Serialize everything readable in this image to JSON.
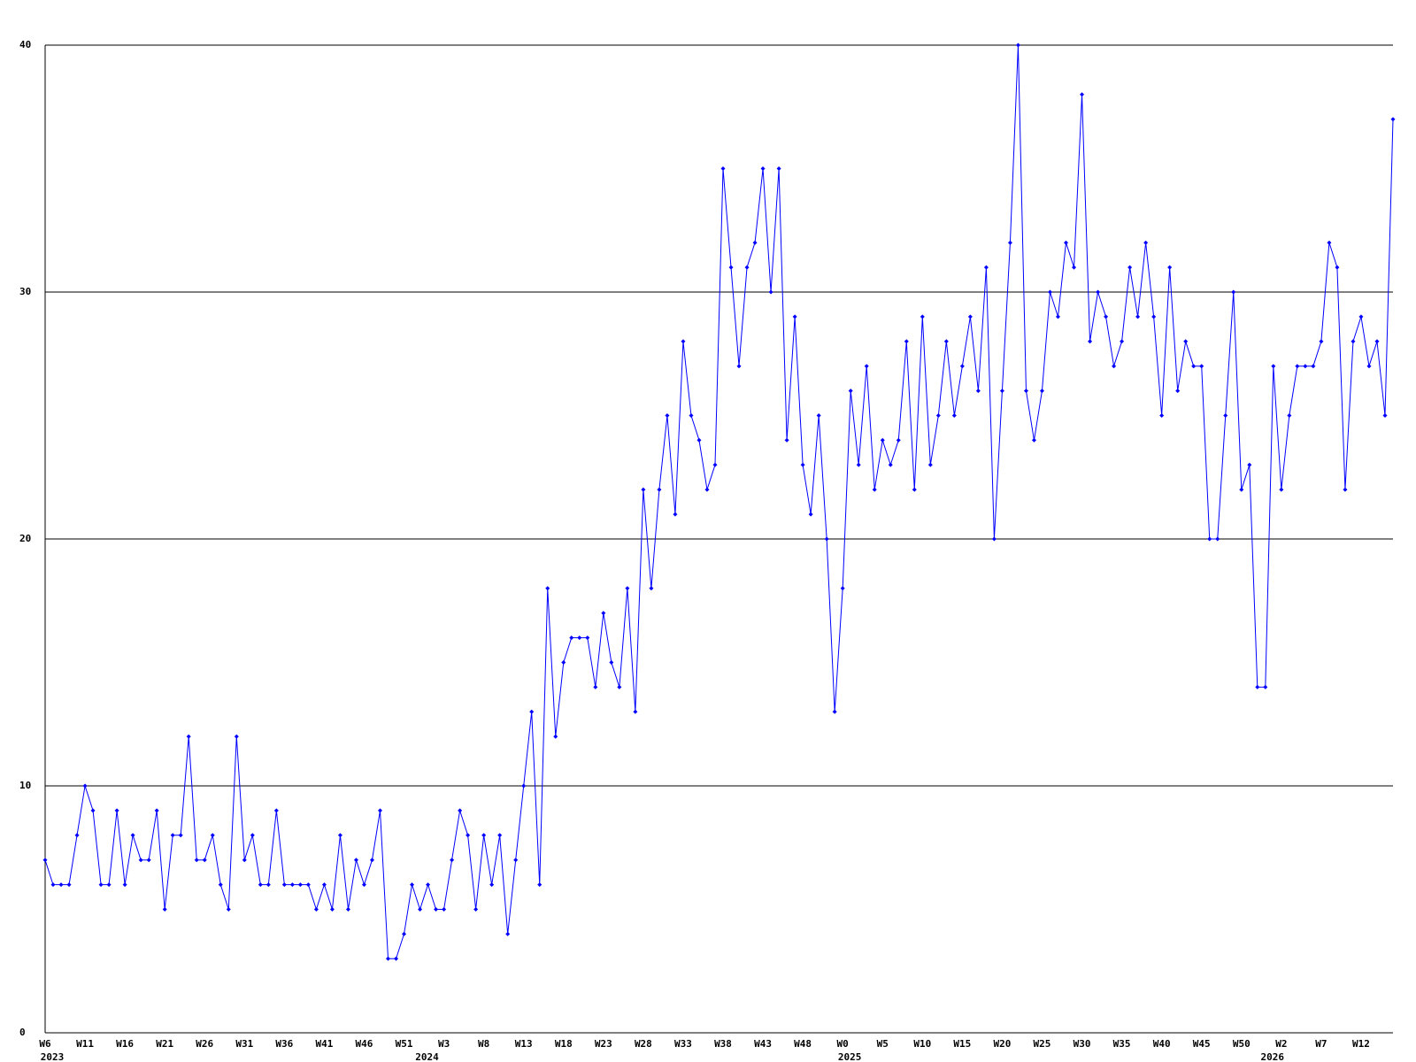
{
  "chart_data": {
    "type": "line",
    "color": "#0000ff",
    "grid": true,
    "ylim": [
      0,
      40
    ],
    "yticks": [
      0,
      10,
      20,
      30,
      40
    ],
    "values": [
      7,
      6,
      6,
      6,
      8,
      10,
      9,
      6,
      6,
      9,
      6,
      8,
      7,
      7,
      9,
      5,
      8,
      8,
      12,
      7,
      7,
      8,
      6,
      5,
      12,
      7,
      8,
      6,
      6,
      9,
      6,
      6,
      6,
      6,
      5,
      6,
      5,
      8,
      5,
      7,
      6,
      7,
      9,
      3,
      3,
      4,
      6,
      5,
      6,
      5,
      5,
      7,
      9,
      8,
      5,
      8,
      6,
      8,
      4,
      7,
      10,
      13,
      6,
      18,
      12,
      15,
      16,
      16,
      16,
      14,
      17,
      15,
      14,
      18,
      13,
      22,
      18,
      22,
      25,
      21,
      28,
      25,
      24,
      22,
      23,
      35,
      31,
      27,
      31,
      32,
      35,
      30,
      35,
      24,
      29,
      23,
      21,
      25,
      20,
      13,
      18,
      26,
      23,
      27,
      22,
      24,
      23,
      24,
      28,
      22,
      29,
      23,
      25,
      28,
      25,
      27,
      29,
      26,
      31,
      20,
      26,
      32,
      40,
      26,
      24,
      26,
      30,
      29,
      32,
      31,
      38,
      28,
      30,
      29,
      27,
      28,
      31,
      29,
      32,
      29,
      25,
      31,
      26,
      28,
      27,
      27,
      20,
      20,
      25,
      30,
      22,
      23,
      14,
      14,
      27,
      22,
      25,
      27,
      27,
      27,
      28,
      32,
      31,
      22,
      28,
      29,
      27,
      28,
      25,
      37
    ],
    "categories": [
      "W6",
      null,
      null,
      null,
      null,
      "W11",
      null,
      null,
      null,
      null,
      "W16",
      null,
      null,
      null,
      null,
      "W21",
      null,
      null,
      null,
      null,
      "W26",
      null,
      null,
      null,
      null,
      "W31",
      null,
      null,
      null,
      null,
      "W36",
      null,
      null,
      null,
      null,
      "W41",
      null,
      null,
      null,
      null,
      "W46",
      null,
      null,
      null,
      null,
      "W51",
      null,
      null,
      null,
      null,
      "W3",
      null,
      null,
      null,
      null,
      "W8",
      null,
      null,
      null,
      null,
      "W13",
      null,
      null,
      null,
      null,
      "W18",
      null,
      null,
      null,
      null,
      "W23",
      null,
      null,
      null,
      null,
      "W28",
      null,
      null,
      null,
      null,
      "W33",
      null,
      null,
      null,
      null,
      "W38",
      null,
      null,
      null,
      null,
      "W43",
      null,
      null,
      null,
      null,
      "W48",
      null,
      null,
      null,
      null,
      "W0",
      null,
      null,
      null,
      null,
      "W5",
      null,
      null,
      null,
      null,
      "W10",
      null,
      null,
      null,
      null,
      "W15",
      null,
      null,
      null,
      null,
      "W20",
      null,
      null,
      null,
      null,
      "W25",
      null,
      null,
      null,
      null,
      "W30",
      null,
      null,
      null,
      null,
      "W35",
      null,
      null,
      null,
      null,
      "W40",
      null,
      null,
      null,
      null,
      "W45",
      null,
      null,
      null,
      null,
      "W50",
      null,
      null,
      null,
      null,
      "W2",
      null,
      null,
      null,
      null,
      "W7",
      null,
      null,
      null,
      null,
      "W12",
      null,
      null,
      null,
      null
    ],
    "year_labels": [
      "2023",
      null,
      null,
      null,
      null,
      null,
      null,
      null,
      null,
      null,
      null,
      null,
      null,
      null,
      null,
      null,
      null,
      null,
      null,
      null,
      null,
      null,
      null,
      null,
      null,
      null,
      null,
      null,
      null,
      null,
      null,
      null,
      null,
      null,
      null,
      null,
      null,
      null,
      null,
      null,
      null,
      null,
      null,
      null,
      null,
      null,
      null,
      "2024",
      null,
      null,
      null,
      null,
      null,
      null,
      null,
      null,
      null,
      null,
      null,
      null,
      null,
      null,
      null,
      null,
      null,
      null,
      null,
      null,
      null,
      null,
      null,
      null,
      null,
      null,
      null,
      null,
      null,
      null,
      null,
      null,
      null,
      null,
      null,
      null,
      null,
      null,
      null,
      null,
      null,
      null,
      null,
      null,
      null,
      null,
      null,
      null,
      null,
      null,
      null,
      null,
      "2025",
      null,
      null,
      null,
      null,
      null,
      null,
      null,
      null,
      null,
      null,
      null,
      null,
      null,
      null,
      null,
      null,
      null,
      null,
      null,
      null,
      null,
      null,
      null,
      null,
      null,
      null,
      null,
      null,
      null,
      null,
      null,
      null,
      null,
      null,
      null,
      null,
      null,
      null,
      null,
      null,
      null,
      null,
      null,
      null,
      null,
      null,
      null,
      null,
      null,
      null,
      null,
      null,
      "2026",
      null,
      null,
      null,
      null,
      null,
      null,
      null,
      null,
      null,
      null,
      null,
      null,
      null,
      null,
      null,
      null
    ]
  }
}
